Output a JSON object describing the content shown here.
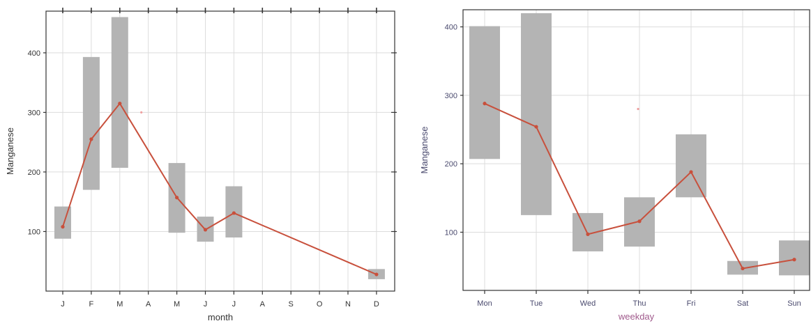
{
  "colors": {
    "band": "#b4b4b4",
    "line": "#c8503c",
    "grid": "#dcdcdc",
    "axis": "#333333",
    "month_text": "#333333",
    "weekday_text": "#4a4a6e",
    "weekday_xlabel": "#a05a8c"
  },
  "chart_data": [
    {
      "type": "line",
      "xlabel": "month",
      "ylabel": "Manganese",
      "ylim": [
        0,
        470
      ],
      "yticks": [
        100,
        200,
        300,
        400
      ],
      "grid": true,
      "categories": [
        "J",
        "F",
        "M",
        "A",
        "M",
        "J",
        "J",
        "A",
        "S",
        "O",
        "N",
        "D"
      ],
      "series": [
        {
          "role": "mean",
          "values": [
            108,
            255,
            315,
            null,
            157,
            103,
            131,
            null,
            null,
            null,
            null,
            28
          ]
        }
      ],
      "ranges": [
        [
          88,
          142
        ],
        [
          170,
          393
        ],
        [
          207,
          460
        ],
        null,
        [
          98,
          215
        ],
        [
          83,
          125
        ],
        [
          90,
          176
        ],
        null,
        null,
        null,
        null,
        [
          20,
          37
        ]
      ],
      "points": [
        {
          "category": "A",
          "value": 300
        }
      ]
    },
    {
      "type": "line",
      "xlabel": "weekday",
      "ylabel": "Manganese",
      "ylim": [
        15,
        425
      ],
      "yticks": [
        100,
        200,
        300,
        400
      ],
      "grid": true,
      "categories": [
        "Mon",
        "Tue",
        "Wed",
        "Thu",
        "Fri",
        "Sat",
        "Sun"
      ],
      "series": [
        {
          "role": "mean",
          "values": [
            288,
            254,
            97,
            116,
            188,
            47,
            60
          ]
        }
      ],
      "ranges": [
        [
          207,
          401
        ],
        [
          125,
          420
        ],
        [
          72,
          128
        ],
        [
          79,
          151
        ],
        [
          151,
          243
        ],
        [
          38,
          58
        ],
        [
          37,
          88
        ]
      ],
      "points": [
        {
          "category": "Thu",
          "value": 280
        }
      ]
    }
  ]
}
